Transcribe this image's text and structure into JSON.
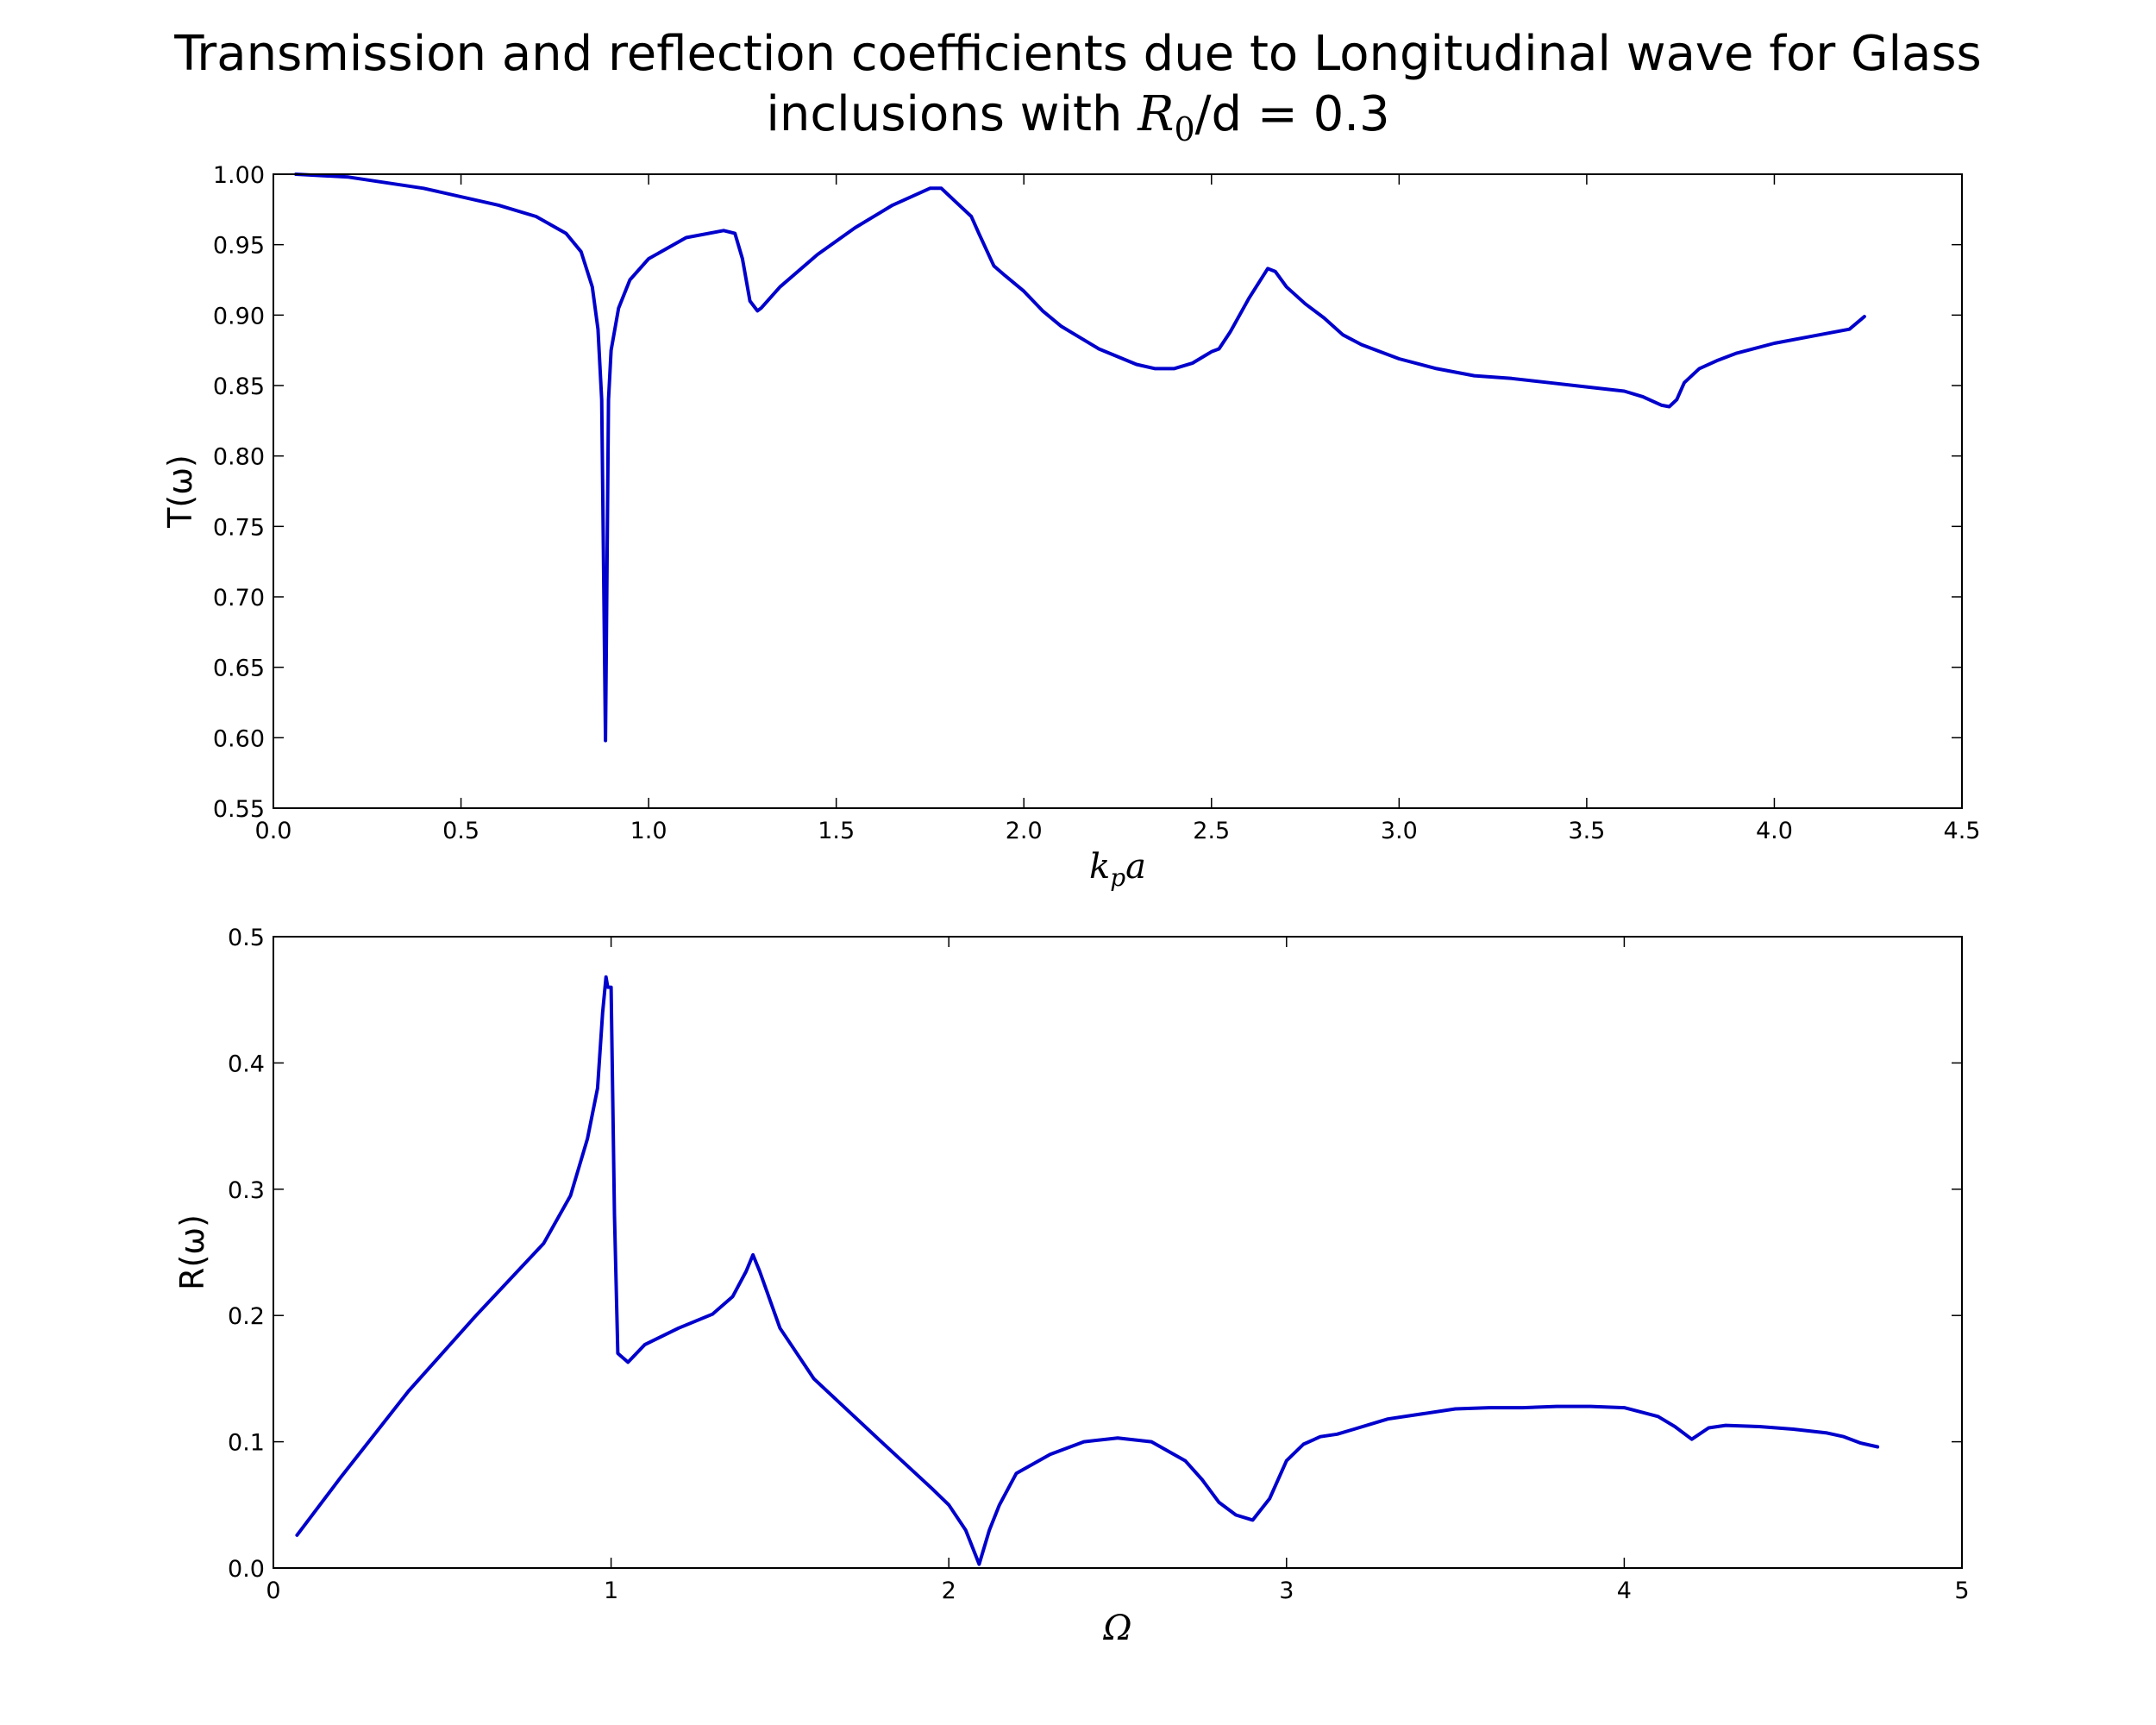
{
  "title_line1": "Transmission and reflection coefficients due to Longitudinal wave for Glass",
  "title_line2_pre": "inclusions with ",
  "title_math_base": "R",
  "title_math_sub": "0",
  "title_line2_post": "/d = 0.3",
  "chart_data": [
    {
      "type": "line",
      "xlabel": "k_p a",
      "xlabel_base": "k",
      "xlabel_sub": "p",
      "xlabel_tail": "a",
      "ylabel": "T(ω)",
      "xlim": [
        0.0,
        4.5
      ],
      "ylim": [
        0.55,
        1.0
      ],
      "xticks": [
        0.0,
        0.5,
        1.0,
        1.5,
        2.0,
        2.5,
        3.0,
        3.5,
        4.0,
        4.5
      ],
      "xtick_labels": [
        "0.0",
        "0.5",
        "1.0",
        "1.5",
        "2.0",
        "2.5",
        "3.0",
        "3.5",
        "4.0",
        "4.5"
      ],
      "yticks": [
        0.55,
        0.6,
        0.65,
        0.7,
        0.75,
        0.8,
        0.85,
        0.9,
        0.95,
        1.0
      ],
      "ytick_labels": [
        "0.55",
        "0.60",
        "0.65",
        "0.70",
        "0.75",
        "0.80",
        "0.85",
        "0.90",
        "0.95",
        "1.00"
      ],
      "grid": false,
      "line_color": "#0000cc",
      "series": [
        {
          "x": [
            0.06,
            0.2,
            0.4,
            0.6,
            0.7,
            0.78,
            0.82,
            0.85,
            0.865,
            0.875,
            0.88,
            0.885,
            0.893,
            0.9,
            0.92,
            0.95,
            1.0,
            1.1,
            1.2,
            1.23,
            1.25,
            1.27,
            1.29,
            1.3,
            1.35,
            1.45,
            1.55,
            1.65,
            1.75,
            1.78,
            1.8,
            1.82,
            1.86,
            1.88,
            1.92,
            1.95,
            2.0,
            2.05,
            2.1,
            2.2,
            2.3,
            2.35,
            2.4,
            2.45,
            2.5,
            2.52,
            2.55,
            2.6,
            2.65,
            2.67,
            2.7,
            2.75,
            2.8,
            2.85,
            2.9,
            3.0,
            3.1,
            3.2,
            3.3,
            3.4,
            3.5,
            3.6,
            3.65,
            3.7,
            3.72,
            3.74,
            3.76,
            3.8,
            3.85,
            3.9,
            4.0,
            4.1,
            4.2,
            4.24
          ],
          "y": [
            1.0,
            0.998,
            0.99,
            0.978,
            0.97,
            0.958,
            0.945,
            0.92,
            0.89,
            0.84,
            0.72,
            0.598,
            0.84,
            0.875,
            0.905,
            0.925,
            0.94,
            0.955,
            0.96,
            0.958,
            0.94,
            0.91,
            0.903,
            0.905,
            0.92,
            0.943,
            0.962,
            0.978,
            0.99,
            0.99,
            0.985,
            0.98,
            0.97,
            0.958,
            0.935,
            0.928,
            0.917,
            0.903,
            0.892,
            0.876,
            0.865,
            0.862,
            0.862,
            0.866,
            0.874,
            0.876,
            0.888,
            0.912,
            0.933,
            0.931,
            0.92,
            0.908,
            0.898,
            0.886,
            0.879,
            0.869,
            0.862,
            0.857,
            0.855,
            0.852,
            0.849,
            0.846,
            0.842,
            0.836,
            0.835,
            0.84,
            0.852,
            0.862,
            0.868,
            0.873,
            0.88,
            0.885,
            0.89,
            0.899
          ]
        }
      ]
    },
    {
      "type": "line",
      "xlabel": "Ω",
      "ylabel": "R(ω)",
      "xlim": [
        0,
        5
      ],
      "ylim": [
        0.0,
        0.5
      ],
      "xticks": [
        0,
        1,
        2,
        3,
        4,
        5
      ],
      "xtick_labels": [
        "0",
        "1",
        "2",
        "3",
        "4",
        "5"
      ],
      "yticks": [
        0.0,
        0.1,
        0.2,
        0.3,
        0.4,
        0.5
      ],
      "ytick_labels": [
        "0.0",
        "0.1",
        "0.2",
        "0.3",
        "0.4",
        "0.5"
      ],
      "grid": false,
      "line_color": "#0000cc",
      "series": [
        {
          "x": [
            0.07,
            0.2,
            0.4,
            0.6,
            0.8,
            0.88,
            0.93,
            0.96,
            0.975,
            0.985,
            0.99,
            1.0,
            1.01,
            1.02,
            1.05,
            1.1,
            1.2,
            1.3,
            1.36,
            1.4,
            1.42,
            1.44,
            1.5,
            1.6,
            1.8,
            1.95,
            2.0,
            2.05,
            2.09,
            2.12,
            2.15,
            2.2,
            2.3,
            2.4,
            2.5,
            2.6,
            2.7,
            2.75,
            2.8,
            2.85,
            2.9,
            2.95,
            3.0,
            3.05,
            3.1,
            3.15,
            3.2,
            3.3,
            3.5,
            3.6,
            3.7,
            3.8,
            3.9,
            4.0,
            4.1,
            4.15,
            4.2,
            4.25,
            4.3,
            4.4,
            4.5,
            4.6,
            4.65,
            4.7,
            4.75
          ],
          "y": [
            0.026,
            0.072,
            0.14,
            0.2,
            0.257,
            0.295,
            0.34,
            0.38,
            0.44,
            0.468,
            0.46,
            0.46,
            0.28,
            0.17,
            0.163,
            0.177,
            0.19,
            0.201,
            0.215,
            0.235,
            0.248,
            0.235,
            0.19,
            0.15,
            0.1,
            0.063,
            0.05,
            0.03,
            0.003,
            0.03,
            0.05,
            0.075,
            0.09,
            0.1,
            0.103,
            0.1,
            0.085,
            0.07,
            0.052,
            0.042,
            0.038,
            0.055,
            0.085,
            0.098,
            0.104,
            0.106,
            0.11,
            0.118,
            0.126,
            0.127,
            0.127,
            0.128,
            0.128,
            0.127,
            0.12,
            0.112,
            0.102,
            0.111,
            0.113,
            0.112,
            0.11,
            0.107,
            0.104,
            0.099,
            0.096
          ]
        }
      ]
    }
  ]
}
